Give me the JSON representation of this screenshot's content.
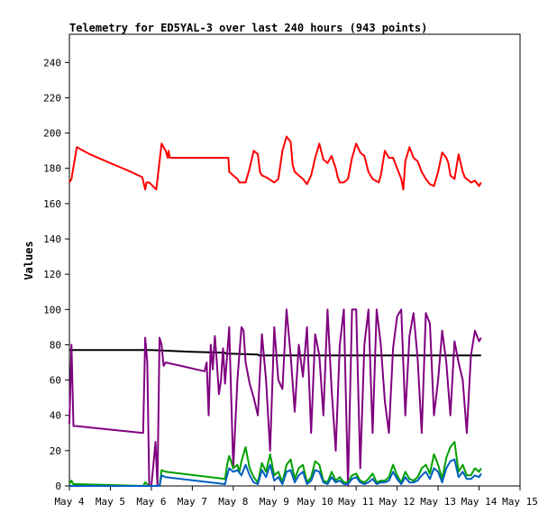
{
  "chart_data": {
    "type": "line",
    "title": "Telemetry for ED5YAL-3 over last 240 hours (943 points)",
    "ylabel": "Values",
    "xlabel": "",
    "ylim": [
      0,
      256
    ],
    "xlim": [
      "May 4",
      "May 15"
    ],
    "y_ticks": [
      0,
      20,
      40,
      60,
      80,
      100,
      120,
      140,
      160,
      180,
      200,
      220,
      240
    ],
    "x_ticks": [
      "May 4",
      "May 5",
      "May 6",
      "May 7",
      "May 8",
      "May 9",
      "May 10",
      "May 11",
      "May 12",
      "May 13",
      "May 14",
      "May 15"
    ],
    "grid": false,
    "legend": "none",
    "series": [
      {
        "color": "#ff0000",
        "x": [
          4.0,
          4.05,
          4.18,
          4.5,
          5.0,
          5.5,
          5.78,
          5.85,
          5.88,
          5.95,
          6.12,
          6.18,
          6.25,
          6.35,
          6.4,
          6.42,
          6.45,
          7.0,
          7.5,
          7.88,
          7.9,
          8.0,
          8.1,
          8.15,
          8.3,
          8.4,
          8.5,
          8.6,
          8.65,
          8.7,
          8.8,
          9.0,
          9.1,
          9.2,
          9.3,
          9.4,
          9.45,
          9.5,
          9.6,
          9.7,
          9.8,
          9.9,
          10.0,
          10.1,
          10.2,
          10.3,
          10.4,
          10.5,
          10.55,
          10.6,
          10.7,
          10.8,
          10.9,
          11.0,
          11.1,
          11.2,
          11.3,
          11.4,
          11.55,
          11.6,
          11.7,
          11.8,
          11.9,
          12.0,
          12.1,
          12.15,
          12.2,
          12.3,
          12.4,
          12.5,
          12.6,
          12.7,
          12.8,
          12.9,
          13.0,
          13.1,
          13.2,
          13.25,
          13.3,
          13.4,
          13.5,
          13.6,
          13.65,
          13.7,
          13.8,
          13.9,
          14.0,
          14.05
        ],
        "y": [
          172,
          174,
          192,
          188,
          183,
          178,
          175,
          168,
          172,
          172,
          168,
          180,
          194,
          190,
          186,
          190,
          186,
          186,
          186,
          186,
          178,
          176,
          174,
          172,
          172,
          180,
          190,
          188,
          178,
          176,
          175,
          172,
          174,
          190,
          198,
          195,
          182,
          178,
          176,
          174,
          171,
          176,
          186,
          194,
          185,
          183,
          187,
          180,
          175,
          172,
          172,
          174,
          186,
          194,
          189,
          187,
          178,
          174,
          172,
          176,
          190,
          186,
          186,
          180,
          174,
          168,
          184,
          192,
          186,
          184,
          178,
          174,
          171,
          170,
          178,
          189,
          186,
          183,
          176,
          174,
          188,
          178,
          175,
          174,
          172,
          173,
          170,
          172
        ]
      },
      {
        "color": "#000000",
        "x": [
          4.0,
          6.0,
          7.0,
          7.8,
          7.82,
          8.6,
          8.62,
          14.05
        ],
        "y": [
          77,
          77,
          76,
          75.5,
          75,
          74.5,
          74,
          74
        ]
      },
      {
        "color": "#800080",
        "x": [
          4.0,
          4.05,
          4.1,
          4.15,
          5.8,
          5.85,
          5.9,
          5.95,
          6.0,
          6.05,
          6.1,
          6.15,
          6.2,
          6.25,
          6.3,
          6.35,
          7.3,
          7.35,
          7.4,
          7.45,
          7.5,
          7.55,
          7.6,
          7.65,
          7.7,
          7.75,
          7.8,
          7.9,
          8.0,
          8.1,
          8.2,
          8.25,
          8.3,
          8.4,
          8.5,
          8.6,
          8.7,
          8.8,
          8.9,
          9.0,
          9.1,
          9.2,
          9.3,
          9.4,
          9.5,
          9.6,
          9.7,
          9.8,
          9.9,
          10.0,
          10.1,
          10.2,
          10.3,
          10.4,
          10.5,
          10.6,
          10.7,
          10.8,
          10.9,
          11.0,
          11.1,
          11.2,
          11.3,
          11.4,
          11.5,
          11.6,
          11.7,
          11.8,
          11.9,
          12.0,
          12.1,
          12.2,
          12.3,
          12.4,
          12.5,
          12.6,
          12.7,
          12.8,
          12.9,
          13.0,
          13.1,
          13.2,
          13.3,
          13.4,
          13.5,
          13.6,
          13.7,
          13.8,
          13.9,
          14.0,
          14.05
        ],
        "y": [
          35,
          80,
          34,
          34,
          30,
          84,
          70,
          0,
          0,
          12,
          25,
          0,
          84,
          80,
          68,
          70,
          65,
          70,
          40,
          80,
          66,
          85,
          70,
          52,
          60,
          78,
          58,
          90,
          10,
          60,
          90,
          88,
          70,
          58,
          50,
          40,
          86,
          60,
          20,
          90,
          60,
          55,
          100,
          74,
          42,
          80,
          62,
          90,
          30,
          86,
          74,
          40,
          100,
          55,
          20,
          80,
          100,
          0,
          100,
          100,
          10,
          80,
          100,
          30,
          100,
          80,
          48,
          30,
          78,
          96,
          100,
          40,
          85,
          98,
          72,
          30,
          98,
          92,
          40,
          60,
          88,
          70,
          40,
          82,
          70,
          60,
          30,
          74,
          88,
          82,
          84
        ]
      },
      {
        "color": "#00a000",
        "x": [
          4.0,
          4.05,
          4.1,
          4.2,
          5.8,
          5.85,
          5.95,
          6.2,
          6.25,
          6.35,
          7.8,
          7.85,
          7.9,
          8.0,
          8.1,
          8.15,
          8.2,
          8.3,
          8.4,
          8.5,
          8.6,
          8.7,
          8.8,
          8.9,
          9.0,
          9.1,
          9.2,
          9.3,
          9.4,
          9.5,
          9.6,
          9.7,
          9.8,
          9.9,
          10.0,
          10.1,
          10.2,
          10.3,
          10.4,
          10.5,
          10.6,
          10.7,
          10.8,
          10.9,
          11.0,
          11.1,
          11.2,
          11.3,
          11.4,
          11.5,
          11.6,
          11.7,
          11.8,
          11.9,
          12.0,
          12.1,
          12.2,
          12.3,
          12.4,
          12.5,
          12.6,
          12.7,
          12.8,
          12.9,
          13.0,
          13.1,
          13.2,
          13.3,
          13.4,
          13.5,
          13.6,
          13.7,
          13.8,
          13.9,
          14.0,
          14.05
        ],
        "y": [
          1,
          3,
          1,
          1,
          0,
          2,
          0,
          0,
          9,
          8,
          4,
          12,
          17,
          10,
          12,
          8,
          14,
          22,
          10,
          5,
          2,
          13,
          8,
          18,
          6,
          8,
          2,
          12,
          15,
          4,
          10,
          12,
          2,
          5,
          14,
          12,
          3,
          2,
          8,
          3,
          5,
          2,
          2,
          6,
          7,
          3,
          2,
          4,
          7,
          2,
          3,
          3,
          5,
          12,
          6,
          2,
          8,
          4,
          3,
          5,
          10,
          12,
          7,
          18,
          12,
          4,
          16,
          22,
          25,
          8,
          12,
          6,
          6,
          10,
          8,
          10
        ]
      },
      {
        "color": "#0060c0",
        "x": [
          4.0,
          4.1,
          5.8,
          5.95,
          6.2,
          6.25,
          6.35,
          7.8,
          7.85,
          7.9,
          8.0,
          8.1,
          8.2,
          8.3,
          8.4,
          8.5,
          8.6,
          8.7,
          8.8,
          8.9,
          9.0,
          9.1,
          9.2,
          9.3,
          9.4,
          9.5,
          9.6,
          9.7,
          9.8,
          9.9,
          10.0,
          10.1,
          10.2,
          10.3,
          10.4,
          10.5,
          10.6,
          10.7,
          10.8,
          10.9,
          11.0,
          11.1,
          11.2,
          11.3,
          11.4,
          11.5,
          11.6,
          11.7,
          11.8,
          11.9,
          12.0,
          12.1,
          12.2,
          12.3,
          12.4,
          12.5,
          12.6,
          12.7,
          12.8,
          12.9,
          13.0,
          13.1,
          13.2,
          13.3,
          13.4,
          13.5,
          13.6,
          13.7,
          13.8,
          13.9,
          14.0,
          14.05
        ],
        "y": [
          0,
          0,
          0,
          0,
          0,
          6,
          5,
          1,
          6,
          10,
          8,
          9,
          6,
          12,
          6,
          2,
          1,
          9,
          5,
          12,
          3,
          5,
          1,
          8,
          9,
          2,
          6,
          8,
          1,
          3,
          9,
          8,
          2,
          1,
          5,
          2,
          3,
          1,
          1,
          4,
          5,
          2,
          1,
          2,
          4,
          1,
          2,
          2,
          3,
          8,
          4,
          1,
          5,
          2,
          2,
          3,
          6,
          8,
          4,
          10,
          8,
          2,
          10,
          14,
          15,
          5,
          8,
          4,
          4,
          6,
          5,
          7
        ]
      }
    ]
  }
}
